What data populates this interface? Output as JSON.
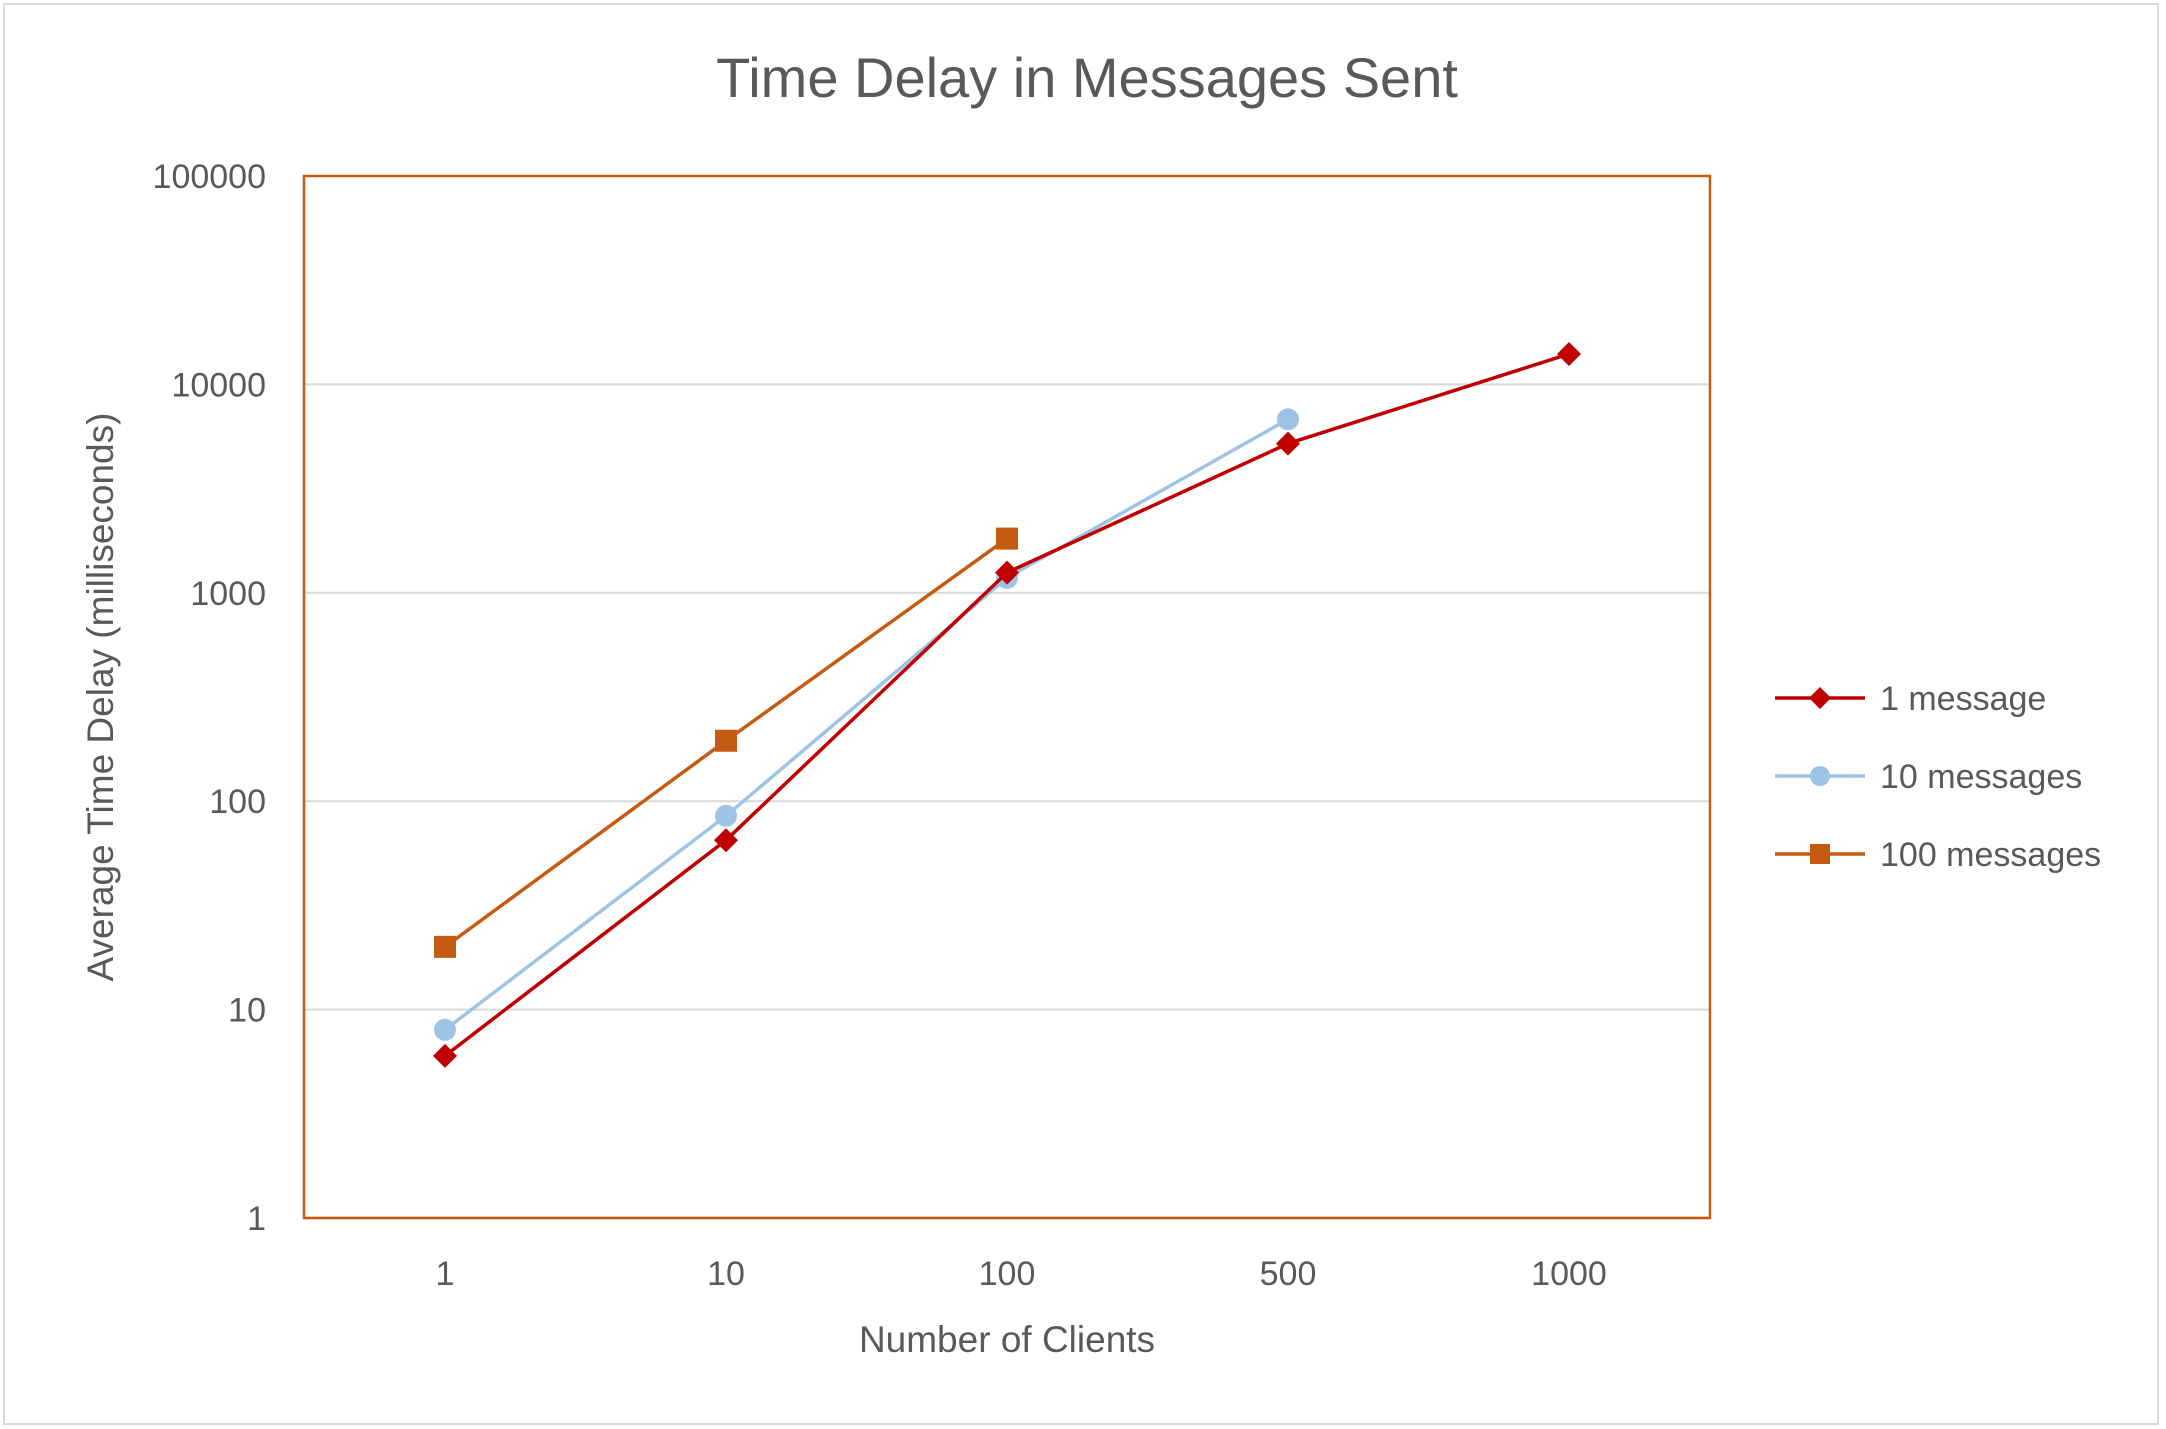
{
  "chart_data": {
    "type": "line",
    "title": "Time Delay in Messages Sent",
    "xlabel": "Number of Clients",
    "ylabel": "Average Time Delay (milliseconds)",
    "categories": [
      "1",
      "10",
      "100",
      "500",
      "1000"
    ],
    "y_scale": "log",
    "ylim": [
      1,
      100000
    ],
    "y_ticks": [
      1,
      10,
      100,
      1000,
      10000,
      100000
    ],
    "y_tick_labels": [
      "1",
      "10",
      "100",
      "1000",
      "10000",
      "100000"
    ],
    "grid": true,
    "legend_position": "right",
    "series": [
      {
        "name": "1 message",
        "values": [
          6,
          65,
          1250,
          5200,
          14000
        ],
        "color": "#C00000",
        "marker": "diamond"
      },
      {
        "name": "10 messages",
        "values": [
          8,
          85,
          1180,
          6800,
          null
        ],
        "color": "#9DC3E6",
        "marker": "circle"
      },
      {
        "name": "100 messages",
        "values": [
          20,
          195,
          1820,
          null,
          null
        ],
        "color": "#C55A11",
        "marker": "square"
      }
    ],
    "colors": {
      "plot_border": "#C55A11",
      "gridline": "#D9D9D9",
      "text": "#595959",
      "frame": "#D9D9D9"
    }
  }
}
